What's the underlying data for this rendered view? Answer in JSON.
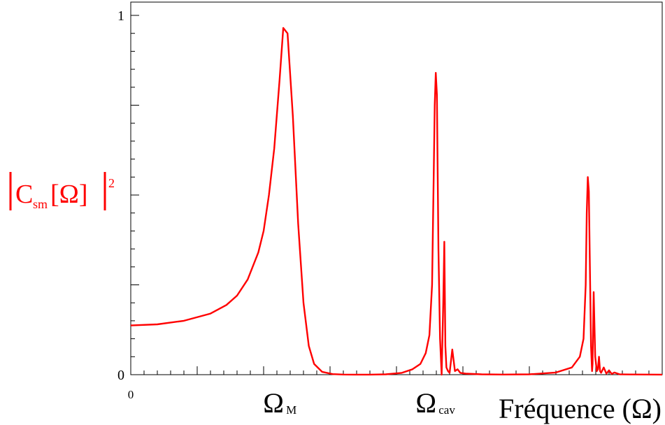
{
  "chart_data": {
    "type": "line",
    "title": "",
    "ylabel": {
      "main": "C",
      "sub": "sm",
      "bracket": "[Ω]",
      "power": "2"
    },
    "xlabel": "Fréquence (Ω)",
    "xlim": [
      0,
      1
    ],
    "ylim": [
      0,
      1
    ],
    "x_tick_labels": [
      {
        "x": 0,
        "main": "0",
        "sub": ""
      },
      {
        "x": 0.287,
        "main": "Ω",
        "sub": "M"
      },
      {
        "x": 0.574,
        "main": "Ω",
        "sub": "cav"
      }
    ],
    "y_tick_labels": [
      {
        "y": 0,
        "label": "0"
      },
      {
        "y": 1,
        "label": "1"
      }
    ],
    "grid": false,
    "series": [
      {
        "color": "#ff0000",
        "x": [
          0,
          0.05,
          0.1,
          0.15,
          0.18,
          0.2,
          0.22,
          0.24,
          0.25,
          0.26,
          0.27,
          0.28,
          0.287,
          0.295,
          0.305,
          0.315,
          0.325,
          0.335,
          0.345,
          0.36,
          0.38,
          0.4,
          0.42,
          0.45,
          0.48,
          0.51,
          0.53,
          0.545,
          0.555,
          0.562,
          0.567,
          0.57,
          0.572,
          0.574,
          0.576,
          0.579,
          0.582,
          0.585,
          0.588,
          0.59,
          0.592,
          0.594,
          0.597,
          0.6,
          0.605,
          0.61,
          0.615,
          0.62,
          0.63,
          0.66,
          0.7,
          0.75,
          0.8,
          0.83,
          0.845,
          0.852,
          0.856,
          0.858,
          0.86,
          0.862,
          0.864,
          0.866,
          0.868,
          0.869,
          0.871,
          0.874,
          0.877,
          0.879,
          0.881,
          0.883,
          0.885,
          0.89,
          0.895,
          0.9,
          0.905,
          0.91,
          0.92,
          0.94,
          0.97,
          1.0
        ],
        "y": [
          0.137,
          0.14,
          0.15,
          0.17,
          0.194,
          0.22,
          0.265,
          0.34,
          0.4,
          0.5,
          0.63,
          0.82,
          0.965,
          0.95,
          0.72,
          0.42,
          0.2,
          0.08,
          0.03,
          0.008,
          0.0015,
          0.0003,
          0.0001,
          0.0001,
          0.001,
          0.005,
          0.015,
          0.03,
          0.06,
          0.11,
          0.25,
          0.55,
          0.75,
          0.84,
          0.78,
          0.35,
          0.1,
          0.0,
          0.2,
          0.37,
          0.08,
          0.02,
          0.01,
          0.005,
          0.07,
          0.01,
          0.015,
          0.005,
          0.003,
          0.001,
          0.0003,
          0.001,
          0.006,
          0.02,
          0.05,
          0.1,
          0.25,
          0.45,
          0.55,
          0.51,
          0.3,
          0.08,
          0.01,
          0.03,
          0.23,
          0.05,
          0.01,
          0.015,
          0.05,
          0.01,
          0.005,
          0.02,
          0.003,
          0.012,
          0.002,
          0.006,
          0.001,
          0.0005,
          0.0003,
          0.0002
        ]
      }
    ]
  }
}
